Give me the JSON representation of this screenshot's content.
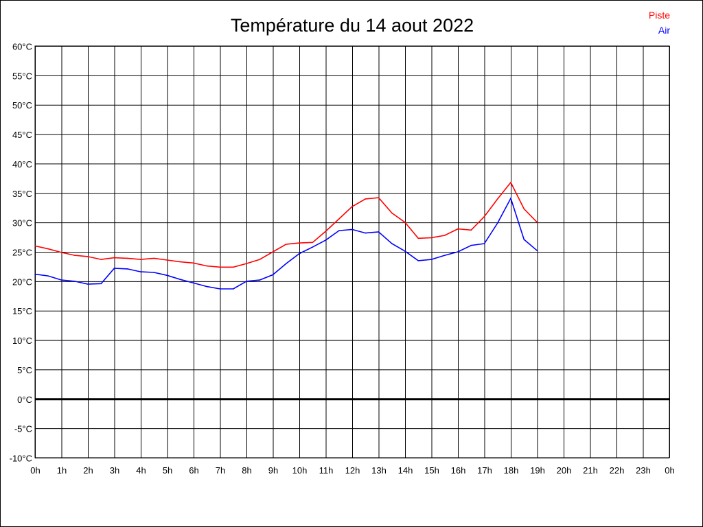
{
  "chart_data": {
    "type": "line",
    "title": "Température du 14 aout 2022",
    "xlabel": "",
    "ylabel": "",
    "ylim": [
      -10,
      60
    ],
    "xlim": [
      0,
      24
    ],
    "grid": true,
    "legend_position": "top-right",
    "y_ticks": [
      "-10°C",
      "-5°C",
      "0°C",
      "5°C",
      "10°C",
      "15°C",
      "20°C",
      "25°C",
      "30°C",
      "35°C",
      "40°C",
      "45°C",
      "50°C",
      "55°C",
      "60°C"
    ],
    "x_ticks": [
      "0h",
      "1h",
      "2h",
      "3h",
      "4h",
      "5h",
      "6h",
      "7h",
      "8h",
      "9h",
      "10h",
      "11h",
      "12h",
      "13h",
      "14h",
      "15h",
      "16h",
      "17h",
      "18h",
      "19h",
      "20h",
      "21h",
      "22h",
      "23h",
      "0h"
    ],
    "x": [
      0,
      0.5,
      1,
      1.5,
      2,
      2.5,
      3,
      3.5,
      4,
      4.5,
      5,
      5.5,
      6,
      6.5,
      7,
      7.5,
      8,
      8.5,
      9,
      9.5,
      10,
      10.5,
      11,
      11.5,
      12,
      12.5,
      13,
      13.5,
      14,
      14.5,
      15,
      15.5,
      16,
      16.5,
      17,
      17.5,
      18,
      18.5,
      19
    ],
    "series": [
      {
        "name": "Piste",
        "color": "#ff0000",
        "values": [
          26.0,
          25.5,
          24.9,
          24.4,
          24.2,
          23.7,
          24.0,
          23.9,
          23.7,
          23.9,
          23.6,
          23.3,
          23.1,
          22.6,
          22.4,
          22.4,
          23.0,
          23.7,
          25.0,
          26.3,
          26.5,
          26.6,
          28.5,
          30.6,
          32.7,
          34.0,
          34.2,
          31.6,
          30.0,
          27.3,
          27.4,
          27.8,
          28.9,
          28.7,
          31.0,
          34.0,
          36.8,
          32.3,
          30.0
        ]
      },
      {
        "name": "Air",
        "color": "#0000ff",
        "values": [
          21.2,
          20.9,
          20.2,
          20.0,
          19.5,
          19.6,
          22.2,
          22.1,
          21.6,
          21.5,
          21.0,
          20.3,
          19.7,
          19.1,
          18.7,
          18.7,
          20.0,
          20.2,
          21.1,
          23.0,
          24.7,
          25.8,
          27.0,
          28.6,
          28.8,
          28.2,
          28.4,
          26.4,
          25.1,
          23.5,
          23.7,
          24.4,
          25.0,
          26.1,
          26.4,
          29.9,
          34.1,
          27.1,
          25.2
        ]
      }
    ]
  }
}
